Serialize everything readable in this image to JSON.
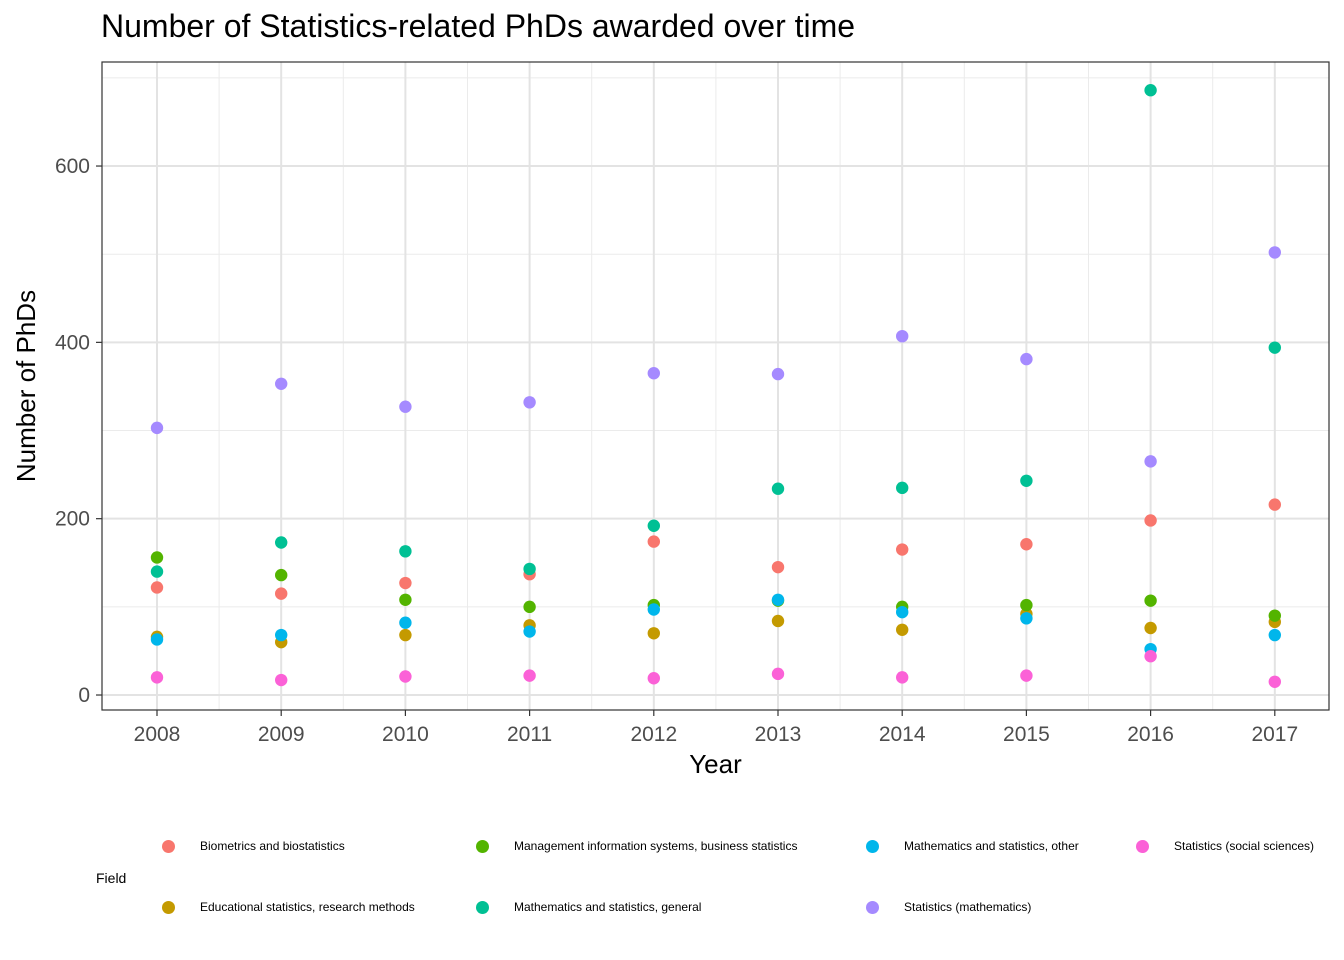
{
  "chart_data": {
    "type": "scatter",
    "title": "Number of Statistics-related PhDs awarded over time",
    "xlabel": "Year",
    "ylabel": "Number of PhDs",
    "x": [
      2008,
      2009,
      2010,
      2011,
      2012,
      2013,
      2014,
      2015,
      2016,
      2017
    ],
    "ylim": [
      -17,
      718
    ],
    "yticks": [
      0,
      200,
      400,
      600
    ],
    "grid": true,
    "legend_title": "Field",
    "legend_position": "bottom",
    "series": [
      {
        "name": "Biometrics and biostatistics",
        "color": "#F8766D",
        "values": [
          122,
          115,
          127,
          137,
          174,
          145,
          165,
          171,
          198,
          216
        ]
      },
      {
        "name": "Educational statistics, research methods",
        "color": "#C49A00",
        "values": [
          66,
          60,
          68,
          79,
          70,
          84,
          74,
          92,
          76,
          83
        ]
      },
      {
        "name": "Management information systems, business statistics",
        "color": "#53B400",
        "values": [
          156,
          136,
          108,
          100,
          102,
          107,
          100,
          102,
          107,
          90
        ]
      },
      {
        "name": "Mathematics and statistics, general",
        "color": "#00C094",
        "values": [
          140,
          173,
          163,
          143,
          192,
          234,
          235,
          243,
          686,
          394
        ]
      },
      {
        "name": "Mathematics and statistics, other",
        "color": "#00B6EB",
        "values": [
          63,
          68,
          82,
          72,
          97,
          108,
          94,
          87,
          52,
          68
        ]
      },
      {
        "name": "Statistics (mathematics)",
        "color": "#A58AFF",
        "values": [
          303,
          353,
          327,
          332,
          365,
          364,
          407,
          381,
          265,
          502
        ]
      },
      {
        "name": "Statistics (social sciences)",
        "color": "#FB61D7",
        "values": [
          20,
          17,
          21,
          22,
          19,
          24,
          20,
          22,
          44,
          15
        ]
      }
    ]
  }
}
